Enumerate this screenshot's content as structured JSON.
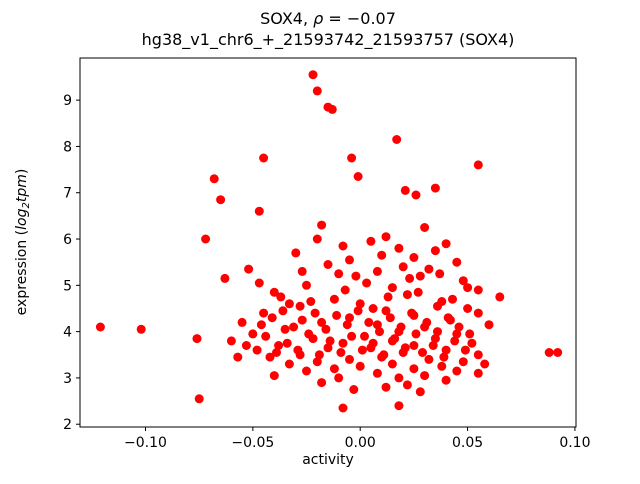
{
  "chart_data": {
    "type": "scatter",
    "title": {
      "line1_prefix": "SOX4, ",
      "line1_rho": "ρ",
      "line1_suffix": " = −0.07",
      "line2": "hg38_v1_chr6_+_21593742_21593757 (SOX4)"
    },
    "xlabel": "activity",
    "ylabel": {
      "prefix": "expression (",
      "math_log": "log",
      "math_sub": "2",
      "math_tpm": "tpm",
      "suffix": ")"
    },
    "xlim": [
      -0.1305,
      0.1005
    ],
    "ylim": [
      1.94,
      9.91
    ],
    "x_ticks": [
      -0.1,
      -0.05,
      0.0,
      0.05,
      0.1
    ],
    "x_tick_labels": [
      "−0.10",
      "−0.05",
      "0.00",
      "0.05",
      "0.10"
    ],
    "y_ticks": [
      2,
      3,
      4,
      5,
      6,
      7,
      8,
      9
    ],
    "y_tick_labels": [
      "2",
      "3",
      "4",
      "5",
      "6",
      "7",
      "8",
      "9"
    ],
    "grid": false,
    "legend": false,
    "marker_color": "#ff0000",
    "marker_radius": 4.5,
    "points": [
      [
        -0.022,
        9.55
      ],
      [
        -0.02,
        9.2
      ],
      [
        -0.015,
        8.85
      ],
      [
        -0.013,
        8.8
      ],
      [
        0.017,
        8.15
      ],
      [
        -0.045,
        7.75
      ],
      [
        -0.004,
        7.75
      ],
      [
        0.055,
        7.6
      ],
      [
        -0.001,
        7.35
      ],
      [
        -0.068,
        7.3
      ],
      [
        0.035,
        7.1
      ],
      [
        0.021,
        7.05
      ],
      [
        0.026,
        6.95
      ],
      [
        -0.065,
        6.85
      ],
      [
        -0.047,
        6.6
      ],
      [
        -0.018,
        6.3
      ],
      [
        0.03,
        6.25
      ],
      [
        -0.02,
        6.0
      ],
      [
        -0.072,
        6.0
      ],
      [
        0.012,
        6.05
      ],
      [
        0.005,
        5.95
      ],
      [
        0.04,
        5.9
      ],
      [
        -0.008,
        5.85
      ],
      [
        0.018,
        5.8
      ],
      [
        0.035,
        5.75
      ],
      [
        -0.03,
        5.7
      ],
      [
        0.01,
        5.65
      ],
      [
        0.025,
        5.6
      ],
      [
        -0.005,
        5.55
      ],
      [
        0.045,
        5.5
      ],
      [
        -0.015,
        5.45
      ],
      [
        0.02,
        5.4
      ],
      [
        0.032,
        5.35
      ],
      [
        -0.052,
        5.35
      ],
      [
        0.008,
        5.3
      ],
      [
        -0.01,
        5.25
      ],
      [
        0.028,
        5.2
      ],
      [
        -0.063,
        5.15
      ],
      [
        0.048,
        5.1
      ],
      [
        0.003,
        5.05
      ],
      [
        -0.025,
        5.0
      ],
      [
        0.015,
        4.95
      ],
      [
        0.055,
        4.9
      ],
      [
        -0.04,
        4.85
      ],
      [
        0.022,
        4.8
      ],
      [
        0.065,
        4.75
      ],
      [
        -0.012,
        4.7
      ],
      [
        0.038,
        4.65
      ],
      [
        0.0,
        4.6
      ],
      [
        -0.028,
        4.55
      ],
      [
        0.05,
        4.5
      ],
      [
        0.012,
        4.45
      ],
      [
        -0.045,
        4.4
      ],
      [
        0.055,
        4.4
      ],
      [
        0.025,
        4.35
      ],
      [
        -0.005,
        4.3
      ],
      [
        0.042,
        4.25
      ],
      [
        -0.018,
        4.2
      ],
      [
        0.008,
        4.15
      ],
      [
        -0.121,
        4.1
      ],
      [
        0.03,
        4.1
      ],
      [
        -0.102,
        4.05
      ],
      [
        -0.035,
        4.05
      ],
      [
        0.018,
        4.0
      ],
      [
        -0.05,
        3.95
      ],
      [
        0.045,
        3.95
      ],
      [
        0.002,
        3.9
      ],
      [
        -0.022,
        3.85
      ],
      [
        0.035,
        3.85
      ],
      [
        -0.06,
        3.8
      ],
      [
        0.015,
        3.8
      ],
      [
        -0.008,
        3.75
      ],
      [
        0.052,
        3.75
      ],
      [
        -0.038,
        3.7
      ],
      [
        0.025,
        3.7
      ],
      [
        0.005,
        3.65
      ],
      [
        -0.015,
        3.65
      ],
      [
        0.04,
        3.6
      ],
      [
        -0.048,
        3.6
      ],
      [
        0.088,
        3.55
      ],
      [
        0.092,
        3.55
      ],
      [
        0.02,
        3.55
      ],
      [
        -0.028,
        3.5
      ],
      [
        0.055,
        3.5
      ],
      [
        0.01,
        3.45
      ],
      [
        -0.042,
        3.45
      ],
      [
        0.032,
        3.4
      ],
      [
        -0.005,
        3.4
      ],
      [
        0.048,
        3.35
      ],
      [
        -0.02,
        3.35
      ],
      [
        0.015,
        3.3
      ],
      [
        -0.033,
        3.3
      ],
      [
        0.038,
        3.25
      ],
      [
        0.0,
        3.25
      ],
      [
        -0.012,
        3.2
      ],
      [
        0.025,
        3.2
      ],
      [
        0.045,
        3.15
      ],
      [
        -0.025,
        3.15
      ],
      [
        0.055,
        3.1
      ],
      [
        0.008,
        3.1
      ],
      [
        -0.04,
        3.05
      ],
      [
        0.03,
        3.05
      ],
      [
        0.018,
        3.0
      ],
      [
        -0.01,
        3.0
      ],
      [
        0.04,
        2.95
      ],
      [
        -0.018,
        2.9
      ],
      [
        0.022,
        2.85
      ],
      [
        0.012,
        2.8
      ],
      [
        -0.003,
        2.75
      ],
      [
        0.028,
        2.7
      ],
      [
        -0.075,
        2.55
      ],
      [
        0.018,
        2.4
      ],
      [
        -0.008,
        2.35
      ],
      [
        -0.046,
        4.15
      ],
      [
        -0.044,
        3.9
      ],
      [
        -0.041,
        4.3
      ],
      [
        -0.039,
        3.55
      ],
      [
        -0.036,
        4.45
      ],
      [
        -0.034,
        3.75
      ],
      [
        -0.031,
        4.1
      ],
      [
        -0.029,
        3.6
      ],
      [
        -0.027,
        4.25
      ],
      [
        -0.024,
        3.95
      ],
      [
        -0.021,
        4.4
      ],
      [
        -0.019,
        3.5
      ],
      [
        -0.016,
        4.05
      ],
      [
        -0.014,
        3.8
      ],
      [
        -0.011,
        4.35
      ],
      [
        -0.009,
        3.55
      ],
      [
        -0.006,
        4.15
      ],
      [
        -0.004,
        3.9
      ],
      [
        -0.001,
        4.45
      ],
      [
        0.001,
        3.6
      ],
      [
        0.004,
        4.2
      ],
      [
        0.006,
        3.75
      ],
      [
        0.009,
        4.0
      ],
      [
        0.011,
        3.5
      ],
      [
        0.014,
        4.3
      ],
      [
        0.016,
        3.85
      ],
      [
        0.019,
        4.1
      ],
      [
        0.021,
        3.65
      ],
      [
        0.024,
        4.4
      ],
      [
        0.026,
        3.95
      ],
      [
        0.029,
        3.55
      ],
      [
        0.031,
        4.2
      ],
      [
        0.034,
        3.7
      ],
      [
        0.036,
        4.0
      ],
      [
        0.039,
        3.45
      ],
      [
        0.041,
        4.3
      ],
      [
        0.044,
        3.8
      ],
      [
        0.046,
        4.1
      ],
      [
        0.049,
        3.6
      ],
      [
        0.051,
        3.95
      ],
      [
        -0.055,
        4.2
      ],
      [
        -0.053,
        3.7
      ],
      [
        -0.057,
        3.45
      ],
      [
        0.058,
        3.3
      ],
      [
        0.06,
        4.15
      ],
      [
        0.036,
        4.55
      ],
      [
        -0.033,
        4.6
      ],
      [
        0.006,
        4.5
      ],
      [
        -0.023,
        4.65
      ],
      [
        0.043,
        4.7
      ],
      [
        0.013,
        4.75
      ],
      [
        -0.037,
        4.75
      ],
      [
        0.027,
        4.85
      ],
      [
        -0.007,
        4.9
      ],
      [
        0.05,
        4.95
      ],
      [
        -0.047,
        5.05
      ],
      [
        0.023,
        5.15
      ],
      [
        -0.002,
        5.2
      ],
      [
        0.037,
        5.25
      ],
      [
        -0.027,
        5.3
      ],
      [
        -0.076,
        3.85
      ]
    ]
  }
}
